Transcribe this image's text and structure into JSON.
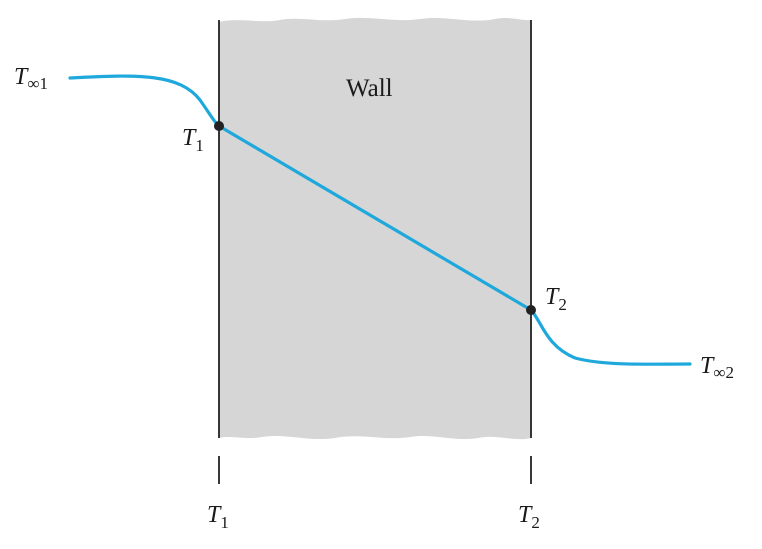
{
  "diagram": {
    "wall_label": "Wall",
    "t_inf_1": {
      "base": "T",
      "sub": "∞1"
    },
    "t1_point": {
      "base": "T",
      "sub": "1"
    },
    "t2_point": {
      "base": "T",
      "sub": "2"
    },
    "t_inf_2": {
      "base": "T",
      "sub": "∞2"
    },
    "axis_t1": {
      "base": "T",
      "sub": "1"
    },
    "axis_t2": {
      "base": "T",
      "sub": "2"
    }
  },
  "colors": {
    "wall_fill": "#d6d6d6",
    "profile_line": "#1fa8dc",
    "edge_line": "#222222",
    "point": "#222222"
  }
}
